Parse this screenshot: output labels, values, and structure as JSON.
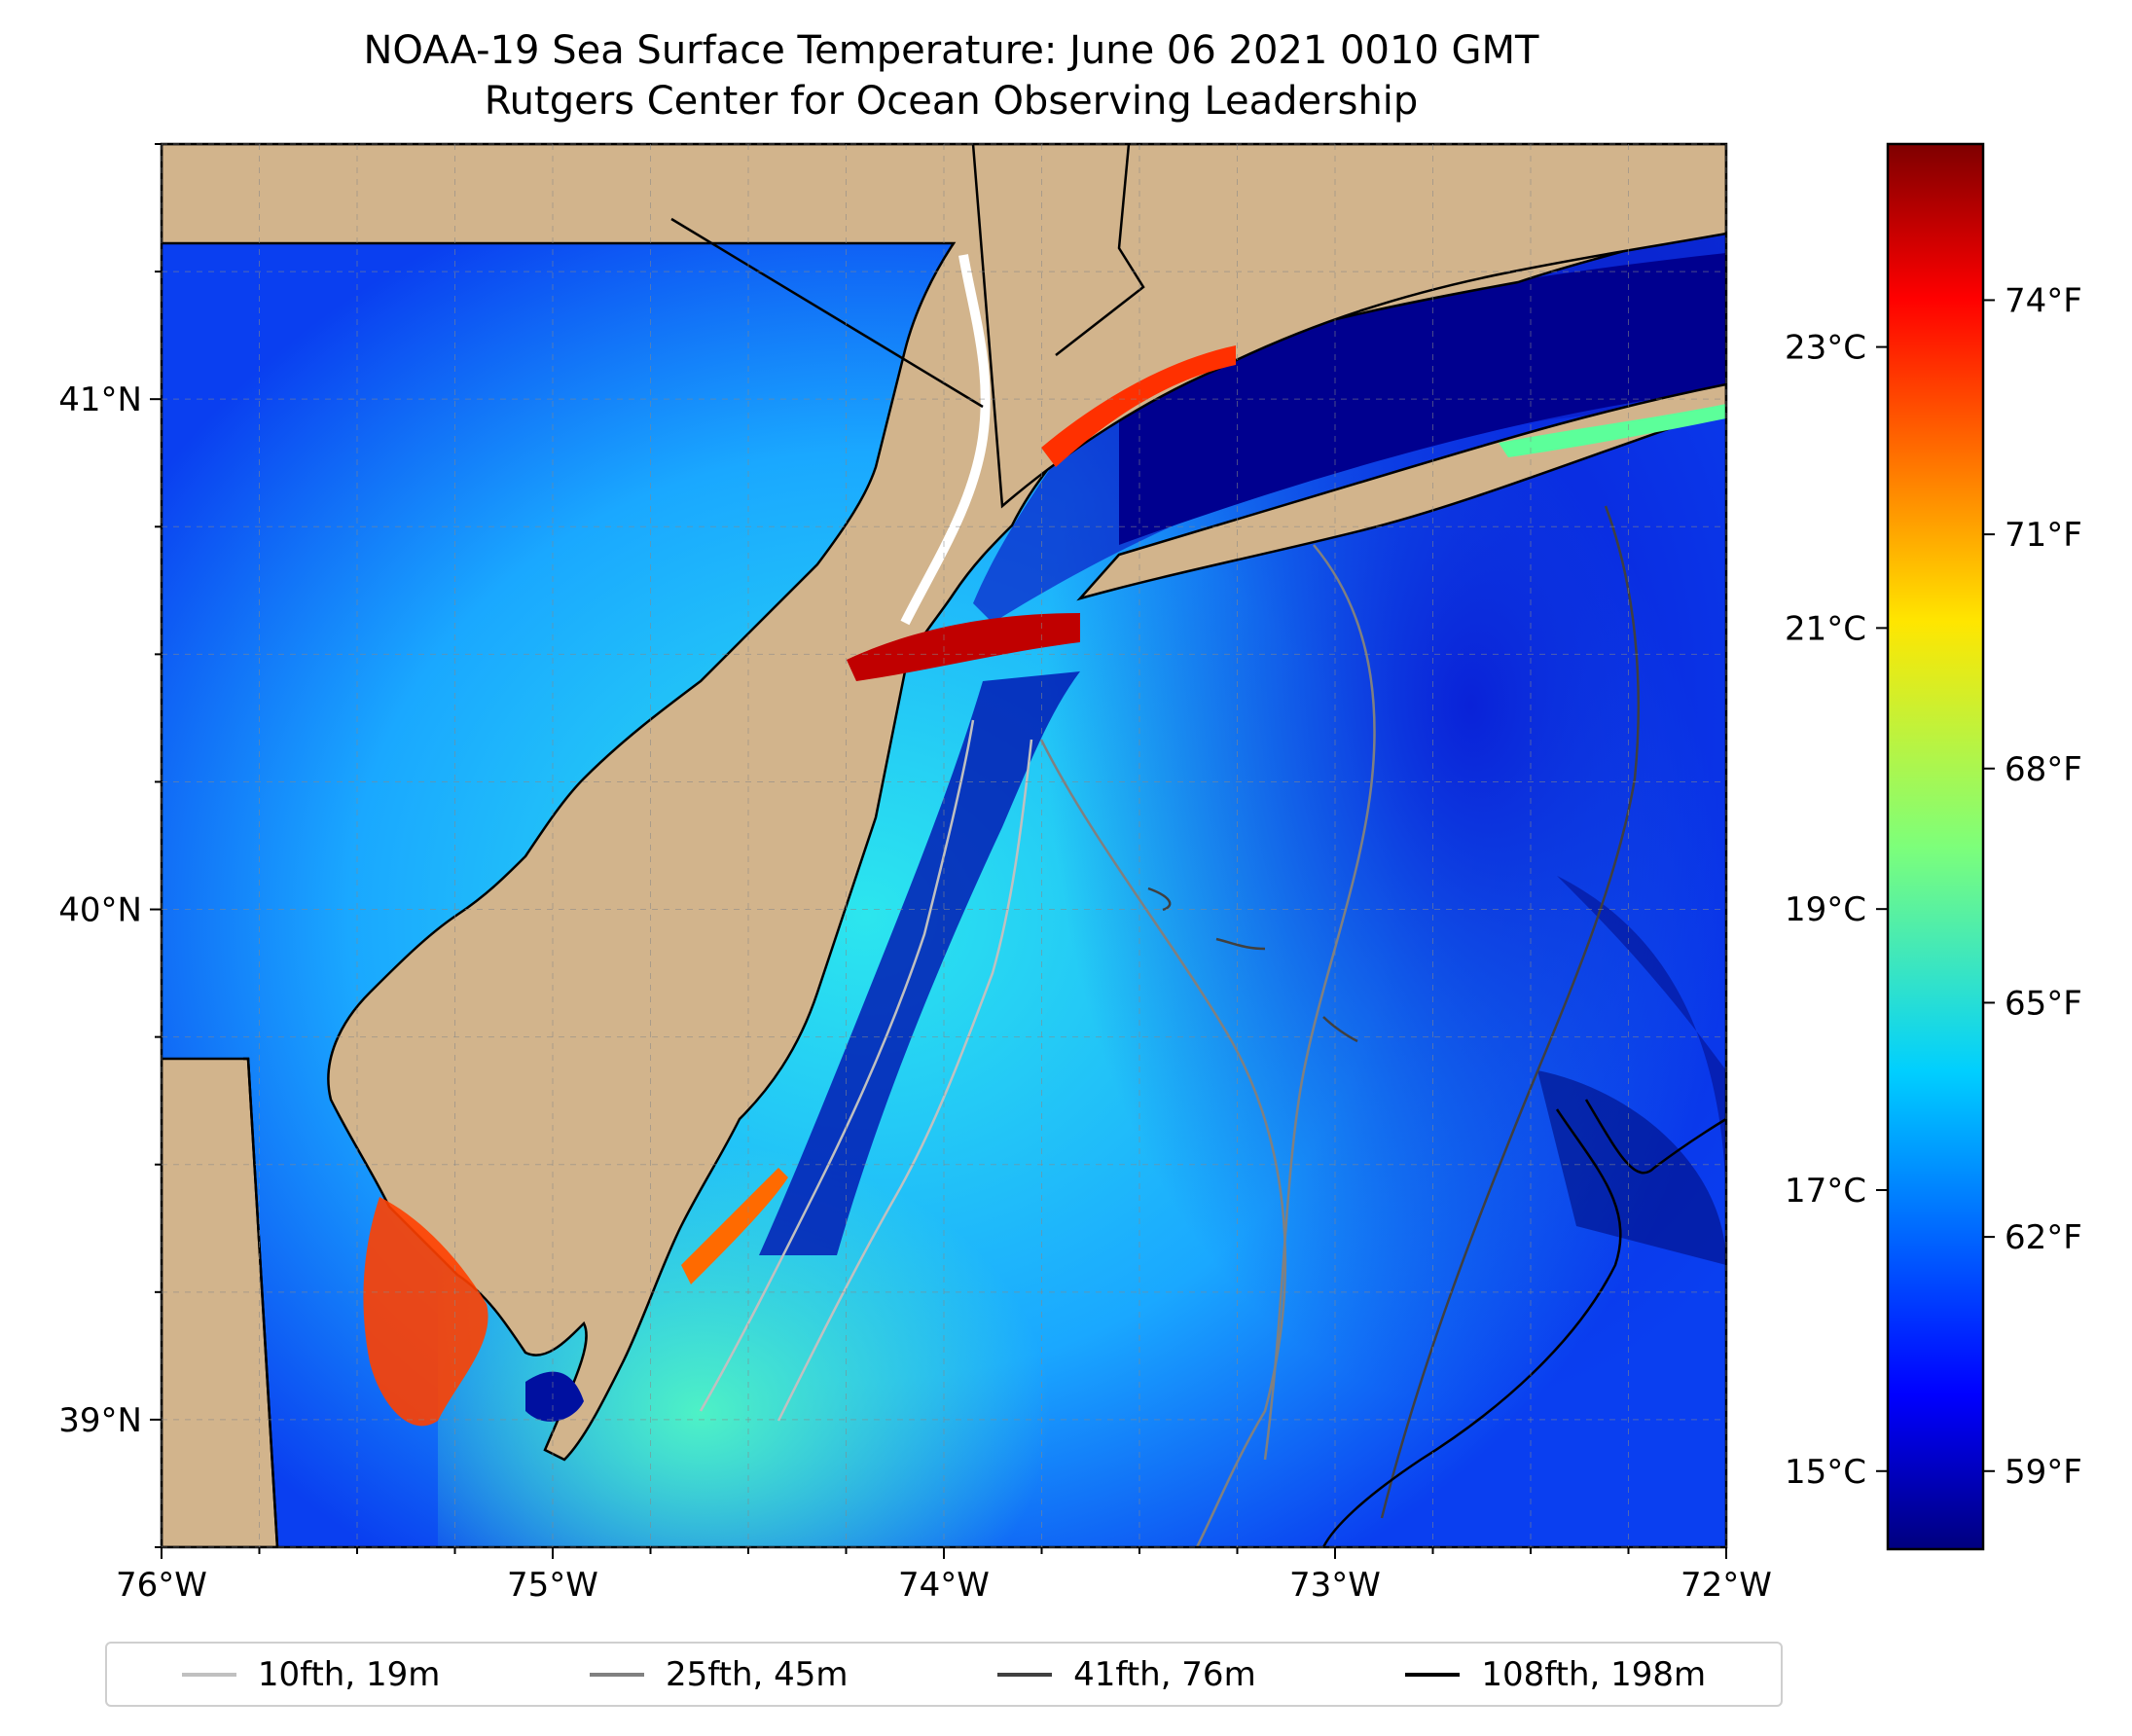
{
  "title": "NOAA-19 Sea Surface Temperature: June 06 2021 0010 GMT",
  "subtitle": "Rutgers Center for Ocean Observing Leadership",
  "map": {
    "lon_range": [
      -76,
      -72
    ],
    "lat_range": [
      38.75,
      41.5
    ],
    "lon_ticks": [
      "76°W",
      "75°W",
      "74°W",
      "73°W",
      "72°W"
    ],
    "lat_ticks": [
      "39°N",
      "40°N",
      "41°N"
    ],
    "grid": true,
    "land_color": "#d2b48c"
  },
  "colorbar": {
    "colormap": "jet",
    "celsius_ticks": [
      "15°C",
      "17°C",
      "19°C",
      "21°C",
      "23°C"
    ],
    "fahrenheit_ticks": [
      "59°F",
      "62°F",
      "65°F",
      "68°F",
      "71°F",
      "74°F"
    ],
    "range_f": [
      58,
      76
    ]
  },
  "legend": {
    "items": [
      {
        "label": "10fth, 19m",
        "color": "#c0c0c0"
      },
      {
        "label": "25fth, 45m",
        "color": "#808080"
      },
      {
        "label": "41fth, 76m",
        "color": "#404040"
      },
      {
        "label": "108fth, 198m",
        "color": "#000000"
      }
    ]
  }
}
